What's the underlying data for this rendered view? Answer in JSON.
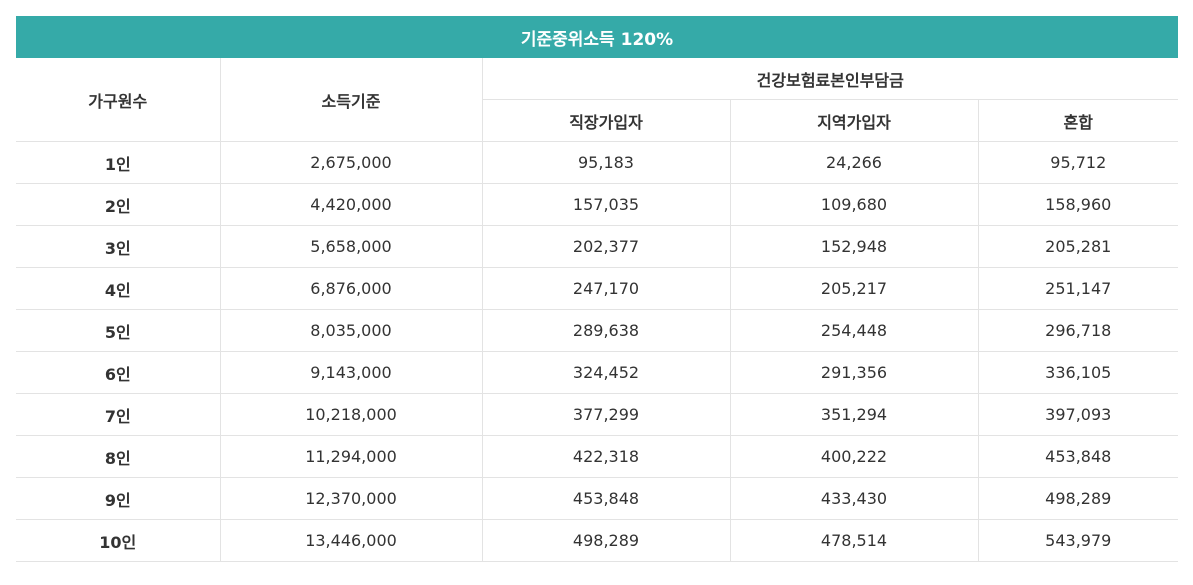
{
  "table": {
    "title": "기준중위소득 120%",
    "headers": {
      "household": "가구원수",
      "income": "소득기준",
      "premium_group": "건강보험료본인부담금",
      "employee": "직장가입자",
      "regional": "지역가입자",
      "mixed": "혼합"
    },
    "rows": [
      {
        "household": "1인",
        "income": "2,675,000",
        "employee": "95,183",
        "regional": "24,266",
        "mixed": "95,712"
      },
      {
        "household": "2인",
        "income": "4,420,000",
        "employee": "157,035",
        "regional": "109,680",
        "mixed": "158,960"
      },
      {
        "household": "3인",
        "income": "5,658,000",
        "employee": "202,377",
        "regional": "152,948",
        "mixed": "205,281"
      },
      {
        "household": "4인",
        "income": "6,876,000",
        "employee": "247,170",
        "regional": "205,217",
        "mixed": "251,147"
      },
      {
        "household": "5인",
        "income": "8,035,000",
        "employee": "289,638",
        "regional": "254,448",
        "mixed": "296,718"
      },
      {
        "household": "6인",
        "income": "9,143,000",
        "employee": "324,452",
        "regional": "291,356",
        "mixed": "336,105"
      },
      {
        "household": "7인",
        "income": "10,218,000",
        "employee": "377,299",
        "regional": "351,294",
        "mixed": "397,093"
      },
      {
        "household": "8인",
        "income": "11,294,000",
        "employee": "422,318",
        "regional": "400,222",
        "mixed": "453,848"
      },
      {
        "household": "9인",
        "income": "12,370,000",
        "employee": "453,848",
        "regional": "433,430",
        "mixed": "498,289"
      },
      {
        "household": "10인",
        "income": "13,446,000",
        "employee": "498,289",
        "regional": "478,514",
        "mixed": "543,979"
      }
    ]
  },
  "colors": {
    "header_bg": "#35aaa8",
    "header_text": "#ffffff",
    "border": "#e3e3e3",
    "text": "#333333"
  }
}
